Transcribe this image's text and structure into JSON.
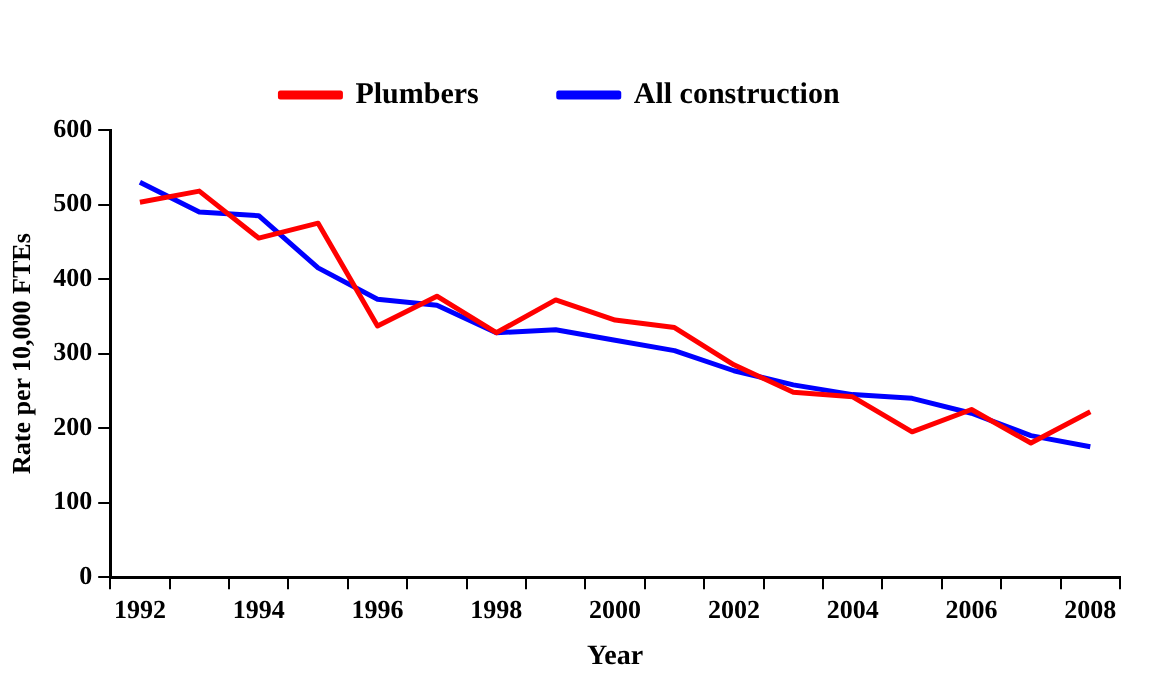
{
  "chart_data": {
    "type": "line",
    "xlabel": "Year",
    "ylabel": "Rate per 10,000 FTEs",
    "categories": [
      "1992",
      null,
      "1994",
      null,
      "1996",
      null,
      "1998",
      null,
      "2000",
      null,
      "2002",
      null,
      "2004",
      null,
      "2006",
      null,
      "2008"
    ],
    "series": [
      {
        "name": "Plumbers",
        "color": "#ff0000",
        "values": [
          503,
          518,
          455,
          475,
          337,
          377,
          328,
          372,
          345,
          335,
          285,
          248,
          242,
          195,
          225,
          180,
          222
        ]
      },
      {
        "name": "All construction",
        "color": "#0000ff",
        "values": [
          530,
          490,
          485,
          415,
          373,
          365,
          328,
          332,
          318,
          304,
          277,
          258,
          245,
          240,
          220,
          190,
          175
        ]
      }
    ],
    "ylim": [
      0,
      600
    ],
    "yticks": [
      0,
      100,
      200,
      300,
      400,
      500,
      600
    ],
    "grid": false,
    "legend": "top",
    "marker": "none",
    "line_style": "solid"
  }
}
